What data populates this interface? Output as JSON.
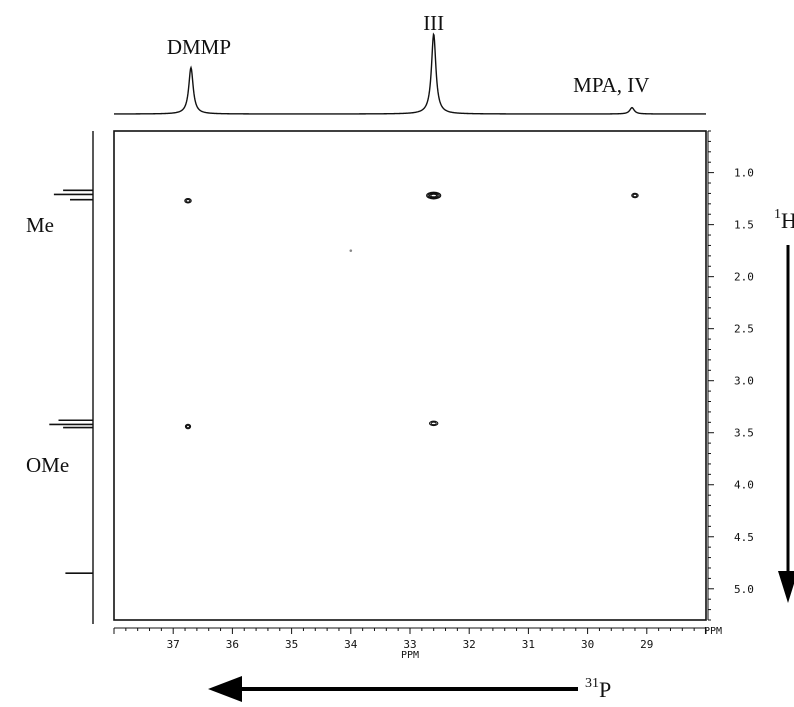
{
  "chart_data": {
    "type": "heatmap",
    "title": "",
    "x_axis": {
      "label": "PPM",
      "range": [
        38,
        28
      ],
      "ticks": [
        37,
        36,
        35,
        34,
        33,
        32,
        31,
        30,
        29
      ],
      "tick_labels": [
        "37",
        "36",
        "35",
        "34",
        "33",
        "32",
        "31",
        "30",
        "29"
      ]
    },
    "y_axis": {
      "label": "PPM",
      "range": [
        0.6,
        5.3
      ],
      "ticks": [
        1.0,
        1.5,
        2.0,
        2.5,
        3.0,
        3.5,
        4.0,
        4.5,
        5.0
      ],
      "tick_labels": [
        "1.0",
        "1.5",
        "2.0",
        "2.5",
        "3.0",
        "3.5",
        "4.0",
        "4.5",
        "5.0"
      ]
    },
    "top_spectrum": {
      "peaks": [
        {
          "label": "DMMP",
          "x": 36.7,
          "height": 0.58
        },
        {
          "label": "III",
          "x": 32.6,
          "height": 1.0
        },
        {
          "label": "MPA, IV",
          "x": 29.25,
          "height": 0.08
        }
      ]
    },
    "left_spectrum": {
      "peaks": [
        {
          "label": "Me",
          "y_values": [
            1.17,
            1.21,
            1.26
          ],
          "heights": [
            0.65,
            0.85,
            0.5
          ]
        },
        {
          "label": "OMe",
          "y_values": [
            3.38,
            3.42,
            3.45
          ],
          "heights": [
            0.75,
            0.95,
            0.65
          ]
        },
        {
          "label": "",
          "y_values": [
            4.85
          ],
          "heights": [
            0.6
          ]
        }
      ]
    },
    "cross_peaks": [
      {
        "x": 36.75,
        "y": 1.27,
        "size": 1.0
      },
      {
        "x": 32.6,
        "y": 1.22,
        "size": 2.2
      },
      {
        "x": 29.2,
        "y": 1.22,
        "size": 1.0
      },
      {
        "x": 36.75,
        "y": 3.44,
        "size": 0.8
      },
      {
        "x": 32.6,
        "y": 3.41,
        "size": 1.3
      },
      {
        "x": 34.0,
        "y": 1.75,
        "size": 0.15
      }
    ],
    "axis_arrows": {
      "horizontal_label_main": "P",
      "horizontal_label_sup": "31",
      "vertical_label_main": "H",
      "vertical_label_sup": "1"
    }
  }
}
